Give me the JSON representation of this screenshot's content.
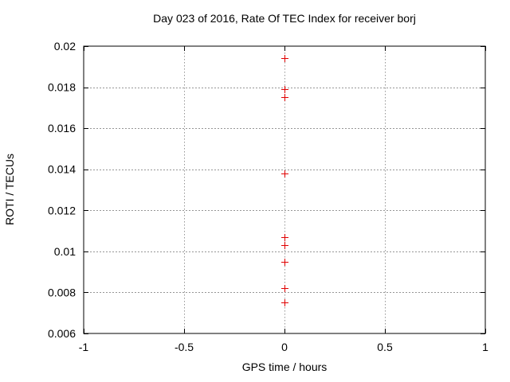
{
  "window": {
    "background": "#ffffff",
    "foreground": "#000000"
  },
  "chart_data": {
    "type": "scatter",
    "title": "Day 023 of 2016, Rate Of TEC Index for receiver borj",
    "xlabel": "GPS time / hours",
    "ylabel": "ROTI / TECUs",
    "xlim": [
      -1,
      1
    ],
    "ylim": [
      0.006,
      0.02
    ],
    "xticks": {
      "values": [
        -1,
        -0.5,
        0,
        0.5,
        1
      ],
      "labels": [
        "-1",
        "-0.5",
        "0",
        "0.5",
        "1"
      ]
    },
    "yticks": {
      "values": [
        0.006,
        0.008,
        0.01,
        0.012,
        0.014,
        0.016,
        0.018,
        0.02
      ],
      "labels": [
        "0.006",
        "0.008",
        "0.01",
        "0.012",
        "0.014",
        "0.016",
        "0.018",
        "0.02"
      ]
    },
    "grid": {
      "enabled": true,
      "color": "#969696",
      "style": "dashed"
    },
    "legend": {
      "visible": false
    },
    "border_color": "#000000",
    "series": [
      {
        "marker": "plus",
        "color": "#e00000",
        "points": [
          {
            "x": 0,
            "y": 0.0194
          },
          {
            "x": 0,
            "y": 0.0179
          },
          {
            "x": 0,
            "y": 0.0175
          },
          {
            "x": 0,
            "y": 0.0138
          },
          {
            "x": 0,
            "y": 0.0107
          },
          {
            "x": 0,
            "y": 0.0103
          },
          {
            "x": 0,
            "y": 0.0095
          },
          {
            "x": 0,
            "y": 0.0082
          },
          {
            "x": 0,
            "y": 0.0075
          }
        ]
      }
    ]
  }
}
